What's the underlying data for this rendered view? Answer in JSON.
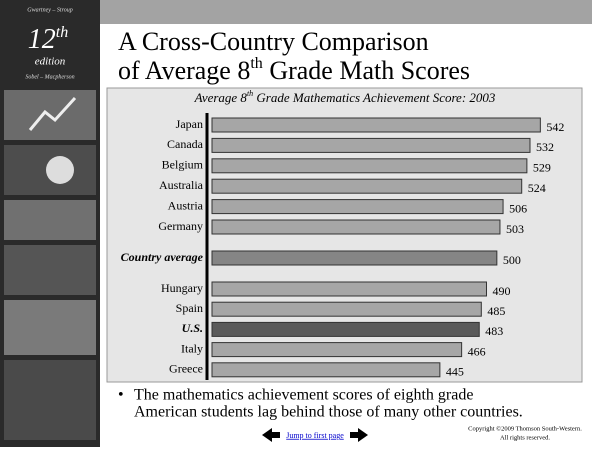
{
  "sidebar": {
    "top": "Gwartney – Stroup",
    "edition_number": "12",
    "edition_suffix": "th",
    "edition": "edition",
    "bottom": "Sobel – Macpherson"
  },
  "slide_title": {
    "line1": "A Cross-Country Comparison",
    "line2_before": "of Average 8",
    "line2_sup": "th",
    "line2_after": " Grade Math Scores"
  },
  "chart_data": {
    "type": "bar",
    "orientation": "horizontal",
    "title": "Average 8",
    "title_sup": "th",
    "title_rest": " Grade Mathematics Achievement Score: 2003",
    "categories": [
      "Japan",
      "Canada",
      "Belgium",
      "Australia",
      "Austria",
      "Germany",
      "Country average",
      "Hungary",
      "Spain",
      "U.S.",
      "Italy",
      "Greece"
    ],
    "values": [
      542,
      532,
      529,
      524,
      506,
      503,
      500,
      490,
      485,
      483,
      466,
      445
    ],
    "colors": [
      "#a6a6a6",
      "#a6a6a6",
      "#a6a6a6",
      "#a6a6a6",
      "#a6a6a6",
      "#a6a6a6",
      "#858585",
      "#a6a6a6",
      "#a6a6a6",
      "#5a5a5a",
      "#a6a6a6",
      "#a6a6a6"
    ],
    "xlim": [
      225,
      560
    ]
  },
  "bullet": {
    "line1": "The mathematics achievement scores of eighth grade",
    "line2": "American students lag behind those of many other countries."
  },
  "footer": {
    "link": "Jump to first page",
    "copyright1": "Copyright ©2009  Thomson South-Western.",
    "copyright2": "All rights reserved."
  }
}
